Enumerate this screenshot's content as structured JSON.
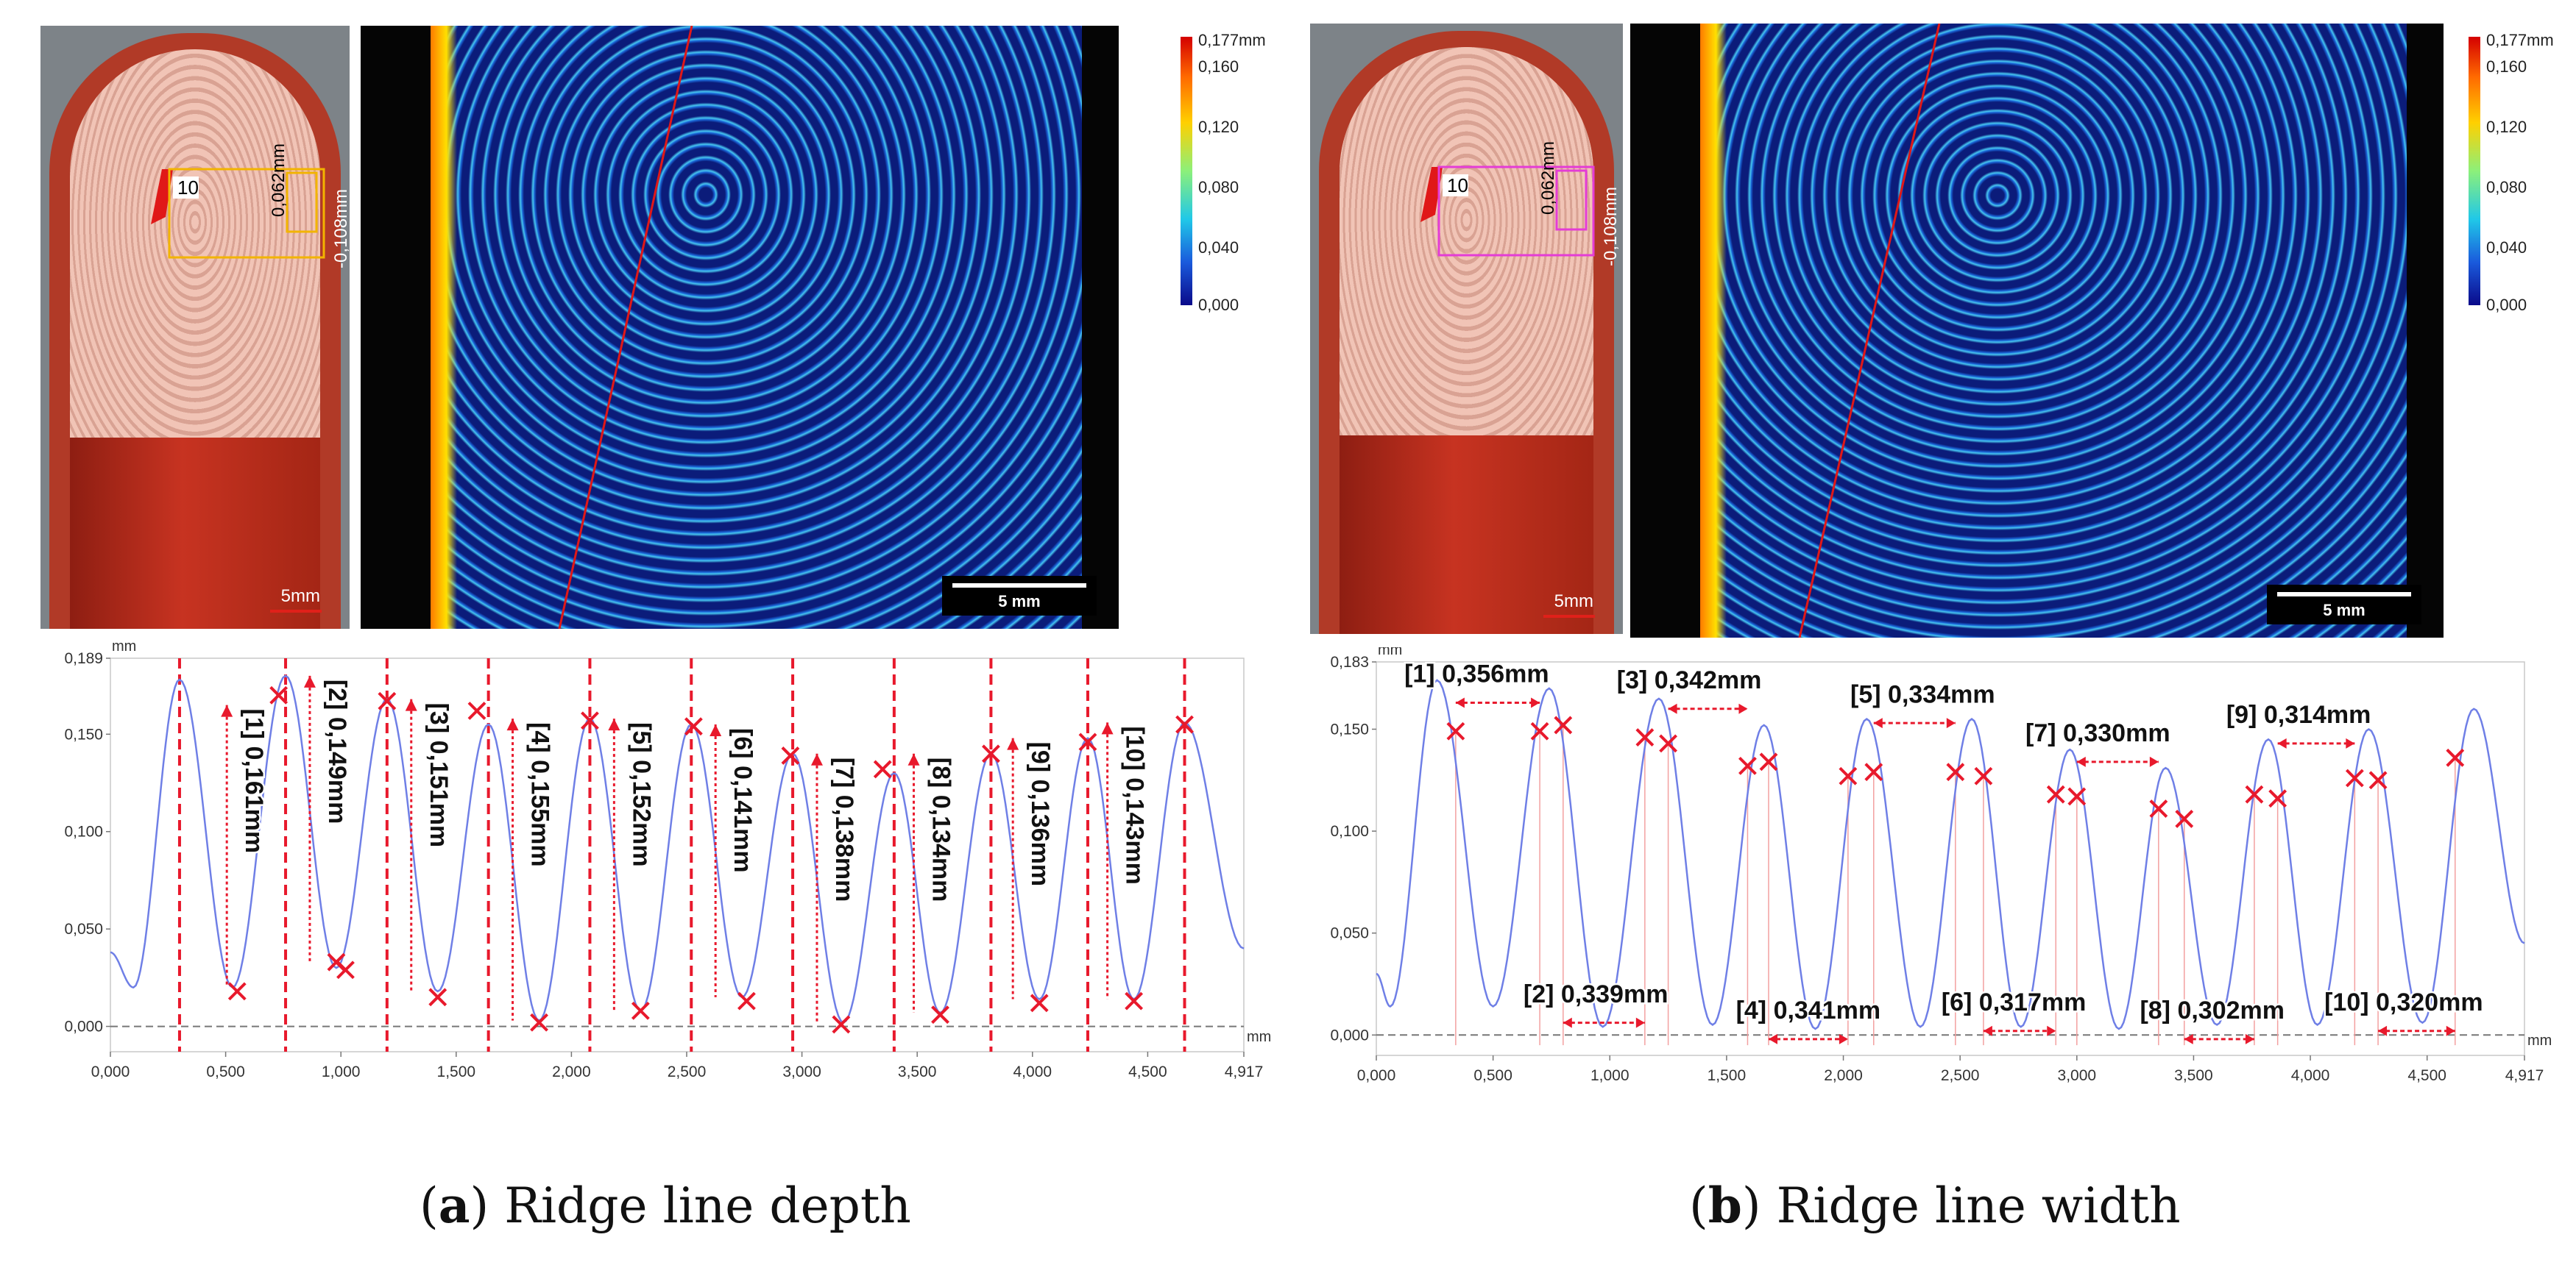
{
  "captions": {
    "a_letter": "a",
    "a_text": " Ridge line depth",
    "b_letter": "b",
    "b_text": " Ridge line width"
  },
  "panels": [
    {
      "id": "a",
      "photo_label": "10",
      "photo_scale": "5mm",
      "photo_dim_1": "0,062mm",
      "photo_dim_2": "-0,108mm",
      "scan_scale": "5 mm",
      "colorbar": [
        "0,177mm",
        "0,160",
        "0,120",
        "0,080",
        "0,040",
        "0,000"
      ],
      "colors": {
        "marker": "#e8192c",
        "curve": "#6f7fe6"
      }
    },
    {
      "id": "b",
      "photo_label": "10",
      "photo_scale": "5mm",
      "photo_dim_1": "0,062mm",
      "photo_dim_2": "-0,108mm",
      "scan_scale": "5 mm",
      "colorbar": [
        "0,177mm",
        "0,160",
        "0,120",
        "0,080",
        "0,040",
        "0,000"
      ],
      "colors": {
        "marker": "#e8192c",
        "curve": "#6f7fe6"
      }
    }
  ],
  "chart_data": [
    {
      "type": "line",
      "title": "Ridge line depth",
      "xlabel": "mm",
      "ylabel": "mm",
      "xlim": [
        0,
        4.917
      ],
      "ylim": [
        -0.013,
        0.189
      ],
      "x_ticks": [
        "0,000",
        "0,500",
        "1,000",
        "1,500",
        "2,000",
        "2,500",
        "3,000",
        "3,500",
        "4,000",
        "4,500",
        "4,917"
      ],
      "y_ticks": [
        "0,000",
        "0,050",
        "0,100",
        "0,150",
        "0,189"
      ],
      "y_tick_values": [
        0,
        0.05,
        0.1,
        0.15,
        0.189
      ],
      "peaks_x": [
        0.3,
        0.76,
        1.2,
        1.64,
        2.08,
        2.52,
        2.96,
        3.4,
        3.82,
        4.24,
        4.66
      ],
      "peaks_y": [
        0.178,
        0.18,
        0.168,
        0.155,
        0.158,
        0.155,
        0.14,
        0.13,
        0.14,
        0.148,
        0.156
      ],
      "troughs_x": [
        0.53,
        0.98,
        1.42,
        1.86,
        2.3,
        2.74,
        3.18,
        3.6,
        4.03,
        4.44
      ],
      "troughs_y": [
        0.02,
        0.03,
        0.018,
        0.003,
        0.008,
        0.015,
        0.002,
        0.007,
        0.014,
        0.014
      ],
      "start_y": 0.038,
      "end_y": 0.04,
      "markers": [
        {
          "x": 0.55,
          "y": 0.018
        },
        {
          "x": 0.73,
          "y": 0.17
        },
        {
          "x": 0.98,
          "y": 0.033
        },
        {
          "x": 1.02,
          "y": 0.029
        },
        {
          "x": 1.2,
          "y": 0.167
        },
        {
          "x": 1.42,
          "y": 0.015
        },
        {
          "x": 1.59,
          "y": 0.162
        },
        {
          "x": 1.86,
          "y": 0.002
        },
        {
          "x": 2.08,
          "y": 0.157
        },
        {
          "x": 2.3,
          "y": 0.008
        },
        {
          "x": 2.53,
          "y": 0.154
        },
        {
          "x": 2.76,
          "y": 0.013
        },
        {
          "x": 2.95,
          "y": 0.139
        },
        {
          "x": 3.17,
          "y": 0.001
        },
        {
          "x": 3.35,
          "y": 0.132
        },
        {
          "x": 3.6,
          "y": 0.006
        },
        {
          "x": 3.82,
          "y": 0.14
        },
        {
          "x": 4.03,
          "y": 0.012
        },
        {
          "x": 4.24,
          "y": 0.146
        },
        {
          "x": 4.44,
          "y": 0.013
        },
        {
          "x": 4.66,
          "y": 0.155
        }
      ],
      "dashed_lines_x": [
        0.3,
        0.76,
        1.2,
        1.64,
        2.08,
        2.52,
        2.96,
        3.4,
        3.82,
        4.24,
        4.66
      ],
      "measurements": [
        {
          "label": "[1] 0,161mm",
          "x": 0.62,
          "y_top": 0.165,
          "y_bot": 0.02
        },
        {
          "label": "[2] 0,149mm",
          "x": 0.98,
          "y_top": 0.18,
          "y_bot": 0.033
        },
        {
          "label": "[3] 0,151mm",
          "x": 1.42,
          "y_top": 0.168,
          "y_bot": 0.018
        },
        {
          "label": "[4] 0,155mm",
          "x": 1.86,
          "y_top": 0.158,
          "y_bot": 0.003
        },
        {
          "label": "[5] 0,152mm",
          "x": 2.3,
          "y_top": 0.158,
          "y_bot": 0.008
        },
        {
          "label": "[6] 0,141mm",
          "x": 2.74,
          "y_top": 0.155,
          "y_bot": 0.015
        },
        {
          "label": "[7] 0,138mm",
          "x": 3.18,
          "y_top": 0.14,
          "y_bot": 0.002
        },
        {
          "label": "[8] 0,134mm",
          "x": 3.6,
          "y_top": 0.14,
          "y_bot": 0.007
        },
        {
          "label": "[9] 0,136mm",
          "x": 4.03,
          "y_top": 0.148,
          "y_bot": 0.014
        },
        {
          "label": "[10] 0,143mm",
          "x": 4.44,
          "y_top": 0.156,
          "y_bot": 0.014
        }
      ]
    },
    {
      "type": "line",
      "title": "Ridge line width",
      "xlabel": "mm",
      "ylabel": "mm",
      "xlim": [
        0,
        4.917
      ],
      "ylim": [
        -0.01,
        0.183
      ],
      "x_ticks": [
        "0,000",
        "0,500",
        "1,000",
        "1,500",
        "2,000",
        "2,500",
        "3,000",
        "3,500",
        "4,000",
        "4,500",
        "4,917"
      ],
      "y_ticks": [
        "0,000",
        "0,050",
        "0,100",
        "0,150",
        "0,183"
      ],
      "y_tick_values": [
        0,
        0.05,
        0.1,
        0.15,
        0.183
      ],
      "peaks_x": [
        0.26,
        0.74,
        1.21,
        1.66,
        2.1,
        2.55,
        2.97,
        3.38,
        3.82,
        4.25,
        4.7
      ],
      "peaks_y": [
        0.174,
        0.17,
        0.165,
        0.152,
        0.155,
        0.155,
        0.14,
        0.131,
        0.145,
        0.15,
        0.16
      ],
      "troughs_x": [
        0.5,
        0.97,
        1.44,
        1.88,
        2.33,
        2.76,
        3.18,
        3.6,
        4.03,
        4.48
      ],
      "troughs_y": [
        0.014,
        0.004,
        0.005,
        0.003,
        0.004,
        0.004,
        0.003,
        0.005,
        0.005,
        0.006
      ],
      "start_y": 0.03,
      "end_y": 0.045,
      "markers": [
        {
          "x": 0.34,
          "y": 0.149
        },
        {
          "x": 0.7,
          "y": 0.149
        },
        {
          "x": 0.8,
          "y": 0.152
        },
        {
          "x": 1.15,
          "y": 0.146
        },
        {
          "x": 1.25,
          "y": 0.143
        },
        {
          "x": 1.59,
          "y": 0.132
        },
        {
          "x": 1.68,
          "y": 0.134
        },
        {
          "x": 2.02,
          "y": 0.127
        },
        {
          "x": 2.13,
          "y": 0.129
        },
        {
          "x": 2.48,
          "y": 0.129
        },
        {
          "x": 2.6,
          "y": 0.127
        },
        {
          "x": 2.91,
          "y": 0.118
        },
        {
          "x": 3.0,
          "y": 0.117
        },
        {
          "x": 3.35,
          "y": 0.111
        },
        {
          "x": 3.46,
          "y": 0.106
        },
        {
          "x": 3.76,
          "y": 0.118
        },
        {
          "x": 3.86,
          "y": 0.116
        },
        {
          "x": 4.19,
          "y": 0.126
        },
        {
          "x": 4.29,
          "y": 0.125
        },
        {
          "x": 4.62,
          "y": 0.136
        }
      ],
      "measurements": [
        {
          "label": "[1] 0,356mm",
          "x1": 0.34,
          "x2": 0.7,
          "y": 0.163,
          "label_x": 0.12,
          "label_y": 0.173
        },
        {
          "label": "[2] 0,339mm",
          "x1": 0.8,
          "x2": 1.15,
          "y": 0.006,
          "label_x": 0.63,
          "label_y": 0.016
        },
        {
          "label": "[3] 0,342mm",
          "x1": 1.25,
          "x2": 1.59,
          "y": 0.16,
          "label_x": 1.03,
          "label_y": 0.17
        },
        {
          "label": "[4] 0,341mm",
          "x1": 1.68,
          "x2": 2.02,
          "y": -0.002,
          "label_x": 1.54,
          "label_y": 0.008
        },
        {
          "label": "[5] 0,334mm",
          "x1": 2.13,
          "x2": 2.48,
          "y": 0.153,
          "label_x": 2.03,
          "label_y": 0.163
        },
        {
          "label": "[6] 0,317mm",
          "x1": 2.6,
          "x2": 2.91,
          "y": 0.002,
          "label_x": 2.42,
          "label_y": 0.012
        },
        {
          "label": "[7] 0,330mm",
          "x1": 3.0,
          "x2": 3.35,
          "y": 0.134,
          "label_x": 2.78,
          "label_y": 0.144
        },
        {
          "label": "[8] 0,302mm",
          "x1": 3.46,
          "x2": 3.76,
          "y": -0.002,
          "label_x": 3.27,
          "label_y": 0.008
        },
        {
          "label": "[9] 0,314mm",
          "x1": 3.86,
          "x2": 4.19,
          "y": 0.143,
          "label_x": 3.64,
          "label_y": 0.153
        },
        {
          "label": "[10] 0,320mm",
          "x1": 4.29,
          "x2": 4.62,
          "y": 0.002,
          "label_x": 4.06,
          "label_y": 0.012
        }
      ]
    }
  ]
}
